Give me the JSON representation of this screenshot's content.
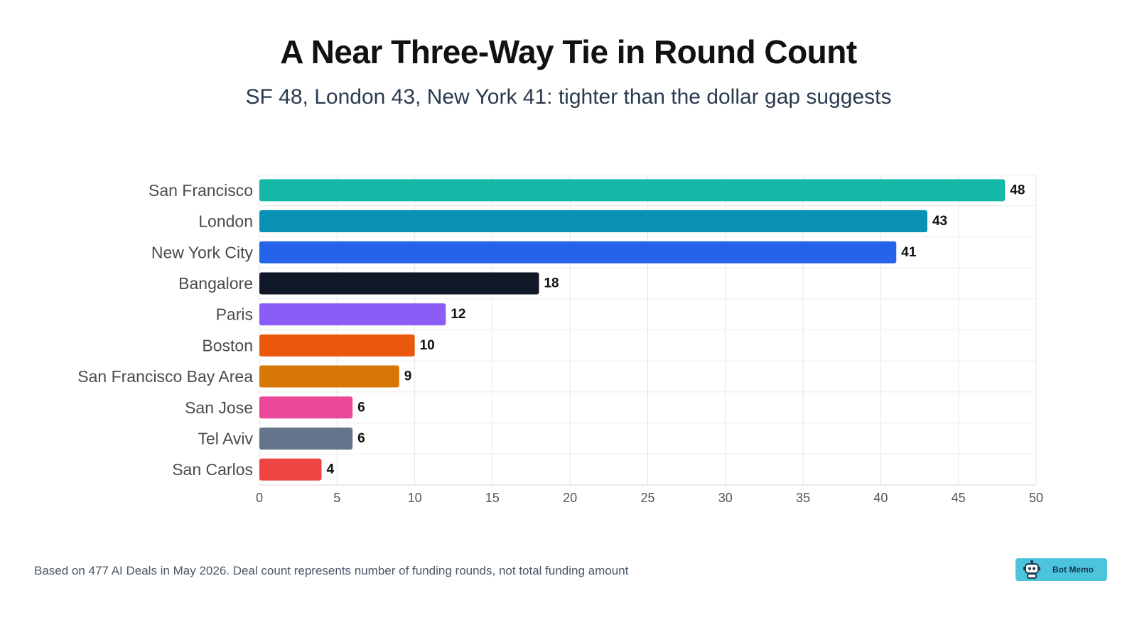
{
  "header": {
    "title": "A Near Three-Way Tie in Round Count",
    "subtitle": "SF 48, London 43, New York 41: tighter than the dollar gap suggests"
  },
  "chart_data": {
    "type": "bar",
    "orientation": "horizontal",
    "categories": [
      "San Francisco",
      "London",
      "New York City",
      "Bangalore",
      "Paris",
      "Boston",
      "San Francisco Bay Area",
      "San Jose",
      "Tel Aviv",
      "San Carlos"
    ],
    "values": [
      48,
      43,
      41,
      18,
      12,
      10,
      9,
      6,
      6,
      4
    ],
    "colors": [
      "#14b8a6",
      "#0891b2",
      "#2563eb",
      "#111827",
      "#8b5cf6",
      "#ea580c",
      "#d97706",
      "#ec4899",
      "#64748b",
      "#ef4444"
    ],
    "xlim": [
      0,
      50
    ],
    "xticks": [
      0,
      5,
      10,
      15,
      20,
      25,
      30,
      35,
      40,
      45,
      50
    ],
    "grid": true,
    "data_labels": true
  },
  "footer": {
    "note": "Based on 477 AI Deals in May 2026. Deal count represents number of funding rounds, not total funding amount",
    "brand": "Bot Memo",
    "brand_icon": "robot-icon",
    "brand_color": "#4cc4dc"
  }
}
